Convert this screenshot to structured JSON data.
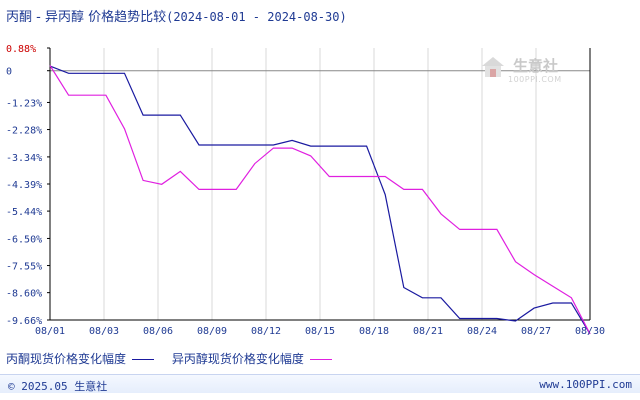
{
  "title": {
    "main": "丙酮 - 异丙醇 价格趋势比较",
    "range": "(2024-08-01 - 2024-08-30)"
  },
  "watermark": {
    "name": "生意社",
    "url": "100PPI.COM",
    "icon": "house-logo-icon"
  },
  "footer": {
    "left": "© 2025.05 生意社",
    "right": "www.100PPI.com"
  },
  "colors": {
    "series_1": "#1a1aa0",
    "series_2": "#e020e0",
    "axis": "#000000",
    "grid": "#d8d8d8",
    "tick_label": "#1f3a93",
    "top_tick_label": "#cc0000"
  },
  "chart_data": {
    "type": "line",
    "x_tick_labels": [
      "08/01",
      "08/03",
      "08/06",
      "08/09",
      "08/12",
      "08/15",
      "08/18",
      "08/21",
      "08/24",
      "08/27",
      "08/30"
    ],
    "y_tick_labels": [
      "0.88%",
      "0",
      "-1.23%",
      "-2.28%",
      "-3.34%",
      "-4.39%",
      "-5.44%",
      "-6.50%",
      "-7.55%",
      "-8.60%",
      "-9.66%"
    ],
    "y_ticks": [
      0.88,
      0,
      -1.23,
      -2.28,
      -3.34,
      -4.39,
      -5.44,
      -6.5,
      -7.55,
      -8.6,
      -9.66
    ],
    "ylim": [
      -9.66,
      0.88
    ],
    "xlim": [
      0,
      29
    ],
    "grid": "vertical",
    "legend_position": "bottom",
    "series": [
      {
        "name": "丙酮现货价格变化幅度",
        "x": [
          0,
          1,
          2,
          3,
          4,
          5,
          6,
          7,
          8,
          9,
          10,
          11,
          12,
          13,
          14,
          15,
          16,
          17,
          18,
          19,
          20,
          21,
          22,
          23,
          24,
          25,
          26,
          27,
          28,
          29
        ],
        "y": [
          0.18,
          -0.1,
          -0.1,
          -0.1,
          -0.1,
          -1.72,
          -1.72,
          -1.72,
          -2.88,
          -2.88,
          -2.88,
          -2.88,
          -2.88,
          -2.7,
          -2.92,
          -2.92,
          -2.92,
          -2.92,
          -4.8,
          -8.4,
          -8.8,
          -8.8,
          -9.6,
          -9.6,
          -9.6,
          -9.7,
          -9.2,
          -9.0,
          -9.0,
          -10.2
        ]
      },
      {
        "name": "异丙醇现货价格变化幅度",
        "x": [
          0,
          1,
          2,
          3,
          4,
          5,
          6,
          7,
          8,
          9,
          10,
          11,
          12,
          13,
          14,
          15,
          16,
          17,
          18,
          19,
          20,
          21,
          22,
          23,
          24,
          25,
          26,
          27,
          28,
          29
        ],
        "y": [
          0.2,
          -0.95,
          -0.95,
          -0.95,
          -2.25,
          -4.25,
          -4.4,
          -3.9,
          -4.6,
          -4.6,
          -4.6,
          -3.6,
          -3.0,
          -3.0,
          -3.3,
          -4.1,
          -4.1,
          -4.1,
          -4.1,
          -4.6,
          -4.6,
          -5.55,
          -6.15,
          -6.15,
          -6.15,
          -7.4,
          -7.9,
          -8.35,
          -8.8,
          -10.2
        ]
      }
    ]
  }
}
